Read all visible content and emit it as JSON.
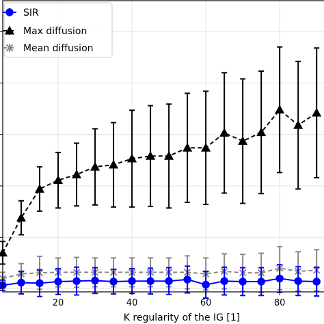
{
  "chart_data": {
    "type": "line",
    "title": "",
    "xlabel": "K regularity of the IG [1]",
    "ylabel": "",
    "x": [
      5,
      10,
      15,
      20,
      25,
      30,
      35,
      40,
      45,
      50,
      55,
      60,
      65,
      70,
      75,
      80,
      85,
      90
    ],
    "xlim": [
      5,
      92
    ],
    "ylim": [
      -0.06,
      5.6
    ],
    "xticks": [
      20,
      40,
      60,
      80
    ],
    "grid": true,
    "legend_position": "top-left",
    "series": [
      {
        "name": "SIR",
        "color": "#0000ff",
        "marker": "circle",
        "linestyle": "solid",
        "values": [
          0.07,
          0.12,
          0.11,
          0.14,
          0.15,
          0.16,
          0.14,
          0.15,
          0.15,
          0.15,
          0.18,
          0.08,
          0.15,
          0.14,
          0.14,
          0.2,
          0.15,
          0.14
        ],
        "errors": [
          0.1,
          0.22,
          0.26,
          0.25,
          0.27,
          0.25,
          0.24,
          0.24,
          0.25,
          0.26,
          0.26,
          0.26,
          0.27,
          0.27,
          0.27,
          0.27,
          0.28,
          0.28
        ]
      },
      {
        "name": "Max diffusion",
        "color": "#000000",
        "marker": "triangle",
        "linestyle": "dashed",
        "values": [
          0.7,
          1.38,
          1.94,
          2.11,
          2.22,
          2.37,
          2.41,
          2.53,
          2.58,
          2.58,
          2.74,
          2.74,
          3.03,
          2.87,
          3.04,
          3.48,
          3.18,
          3.42
        ],
        "errors": [
          0.22,
          0.33,
          0.43,
          0.54,
          0.61,
          0.74,
          0.82,
          0.94,
          0.98,
          1.01,
          1.06,
          1.1,
          1.17,
          1.21,
          1.19,
          1.22,
          1.24,
          1.26
        ]
      },
      {
        "name": "Mean diffusion",
        "color": "#888888",
        "marker": "x",
        "linestyle": "dashed",
        "values": [
          0.2,
          0.29,
          0.31,
          0.32,
          0.32,
          0.32,
          0.32,
          0.32,
          0.32,
          0.32,
          0.32,
          0.29,
          0.34,
          0.31,
          0.31,
          0.4,
          0.34,
          0.36
        ],
        "errors": [
          0.12,
          0.2,
          0.32,
          0.28,
          0.29,
          0.28,
          0.28,
          0.28,
          0.28,
          0.28,
          0.32,
          0.31,
          0.34,
          0.36,
          0.38,
          0.42,
          0.38,
          0.4
        ]
      }
    ]
  }
}
